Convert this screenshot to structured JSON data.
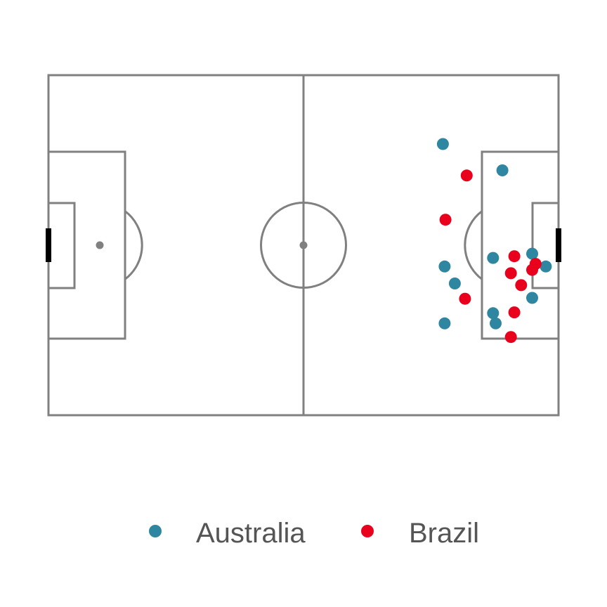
{
  "chart_data": {
    "type": "scatter",
    "title": "",
    "xlabel": "",
    "ylabel": "",
    "xlim": [
      0,
      120
    ],
    "ylim": [
      0,
      80
    ],
    "grid": false,
    "legend": {
      "placement": "bottom"
    },
    "series": [
      {
        "name": "Australia",
        "color": "#2E86A0",
        "points": [
          [
            92.8,
            63.8
          ],
          [
            106.8,
            57.6
          ],
          [
            104.6,
            37.0
          ],
          [
            113.8,
            38.0
          ],
          [
            117.0,
            35.0
          ],
          [
            93.2,
            35.0
          ],
          [
            95.6,
            31.0
          ],
          [
            113.8,
            27.6
          ],
          [
            104.6,
            24.0
          ],
          [
            105.2,
            21.6
          ],
          [
            93.2,
            21.6
          ]
        ]
      },
      {
        "name": "Brazil",
        "color": "#E8001C",
        "points": [
          [
            98.4,
            56.4
          ],
          [
            93.4,
            46.0
          ],
          [
            109.6,
            37.4
          ],
          [
            114.6,
            35.6
          ],
          [
            113.8,
            34.2
          ],
          [
            108.8,
            33.4
          ],
          [
            111.2,
            30.6
          ],
          [
            98.0,
            27.4
          ],
          [
            109.6,
            24.2
          ],
          [
            108.8,
            18.4
          ]
        ]
      }
    ]
  },
  "colors": {
    "pitch_lines": "#808080",
    "goal": "#000000",
    "legend_text": "#555555"
  }
}
